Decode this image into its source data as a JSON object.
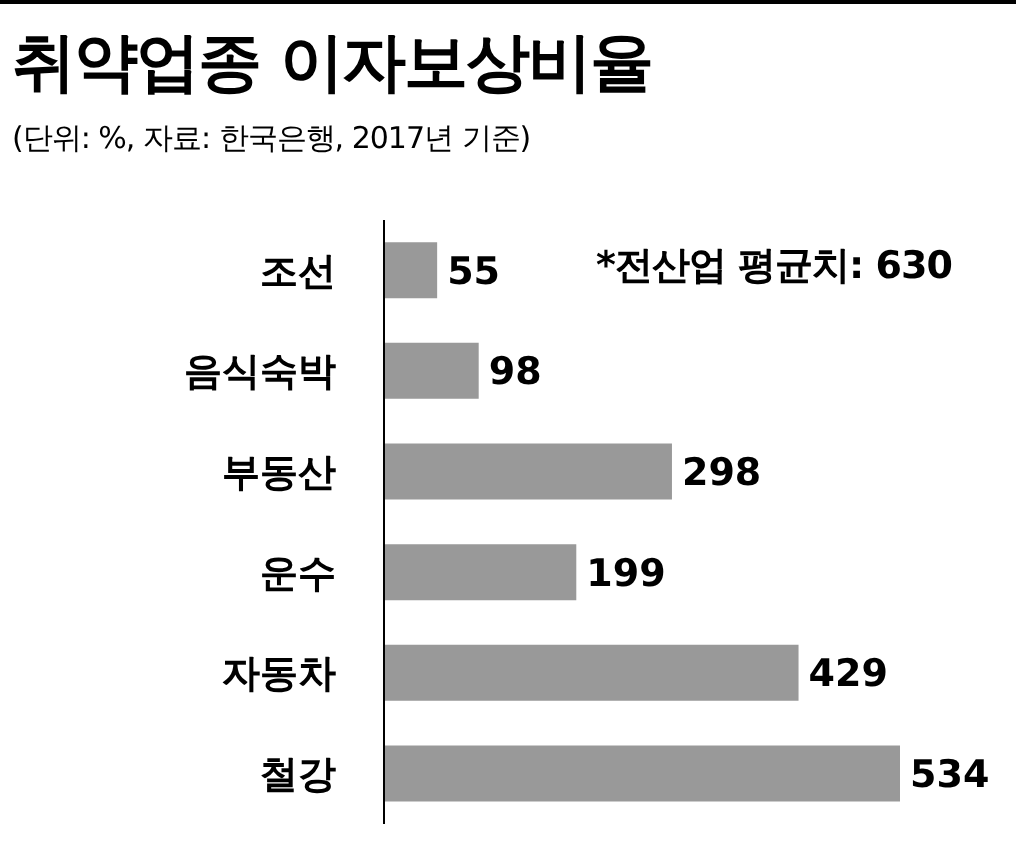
{
  "chart_data": {
    "type": "bar",
    "orientation": "horizontal",
    "title": "취약업종 이자보상비율",
    "subtitle": "(단위: %, 자료: 한국은행, 2017년 기준)",
    "annotations": [
      "*전산업 평균치: 630"
    ],
    "categories": [
      "조선",
      "음식숙박",
      "부동산",
      "운수",
      "자동차",
      "철강"
    ],
    "values": [
      55,
      98,
      298,
      199,
      429,
      534
    ],
    "color": "#999999",
    "data_labels": true,
    "grid": false
  }
}
